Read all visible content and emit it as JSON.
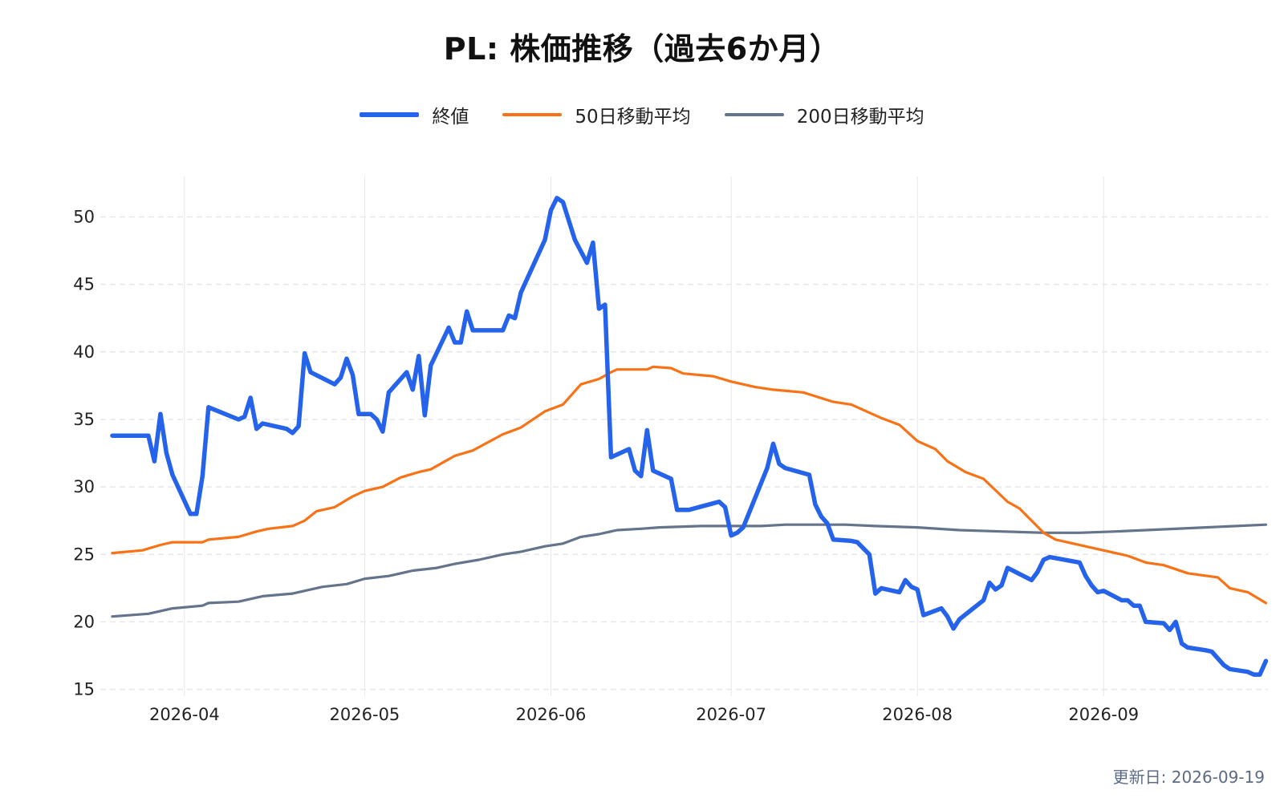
{
  "title": "PL: 株価推移（過去6か月）",
  "updated_label": "更新日: 2026-09-19",
  "colors": {
    "close": "#2563eb",
    "ma50": "#f97316",
    "ma200": "#64748b",
    "grid": "#e5e7eb"
  },
  "chart_data": {
    "type": "line",
    "title": "PL: 株価推移（過去6か月）",
    "xlabel": "",
    "ylabel": "",
    "xlim": [
      "2026-03-20",
      "2026-09-19"
    ],
    "ylim": [
      14.5,
      53
    ],
    "x_ticks": [
      "2026-04",
      "2026-05",
      "2026-06",
      "2026-07",
      "2026-08",
      "2026-09"
    ],
    "y_ticks": [
      15,
      20,
      25,
      30,
      35,
      40,
      45,
      50
    ],
    "grid": true,
    "legend": "top-center",
    "series": [
      {
        "name": "終値",
        "points": [
          [
            "2026-03-20",
            33.8
          ],
          [
            "2026-03-26",
            33.8
          ],
          [
            "2026-03-27",
            31.9
          ],
          [
            "2026-03-28",
            35.4
          ],
          [
            "2026-03-29",
            32.5
          ],
          [
            "2026-03-30",
            30.9
          ],
          [
            "2026-04-02",
            28.0
          ],
          [
            "2026-04-03",
            28.0
          ],
          [
            "2026-04-04",
            30.8
          ],
          [
            "2026-04-05",
            35.9
          ],
          [
            "2026-04-10",
            35.0
          ],
          [
            "2026-04-11",
            35.2
          ],
          [
            "2026-04-12",
            36.6
          ],
          [
            "2026-04-13",
            34.3
          ],
          [
            "2026-04-14",
            34.7
          ],
          [
            "2026-04-18",
            34.3
          ],
          [
            "2026-04-19",
            34.0
          ],
          [
            "2026-04-20",
            34.5
          ],
          [
            "2026-04-21",
            39.9
          ],
          [
            "2026-04-22",
            38.5
          ],
          [
            "2026-04-26",
            37.6
          ],
          [
            "2026-04-27",
            38.1
          ],
          [
            "2026-04-28",
            39.5
          ],
          [
            "2026-04-29",
            38.3
          ],
          [
            "2026-04-30",
            35.4
          ],
          [
            "2026-05-02",
            35.4
          ],
          [
            "2026-05-03",
            35.0
          ],
          [
            "2026-05-04",
            34.1
          ],
          [
            "2026-05-05",
            37.0
          ],
          [
            "2026-05-08",
            38.5
          ],
          [
            "2026-05-09",
            37.2
          ],
          [
            "2026-05-10",
            39.7
          ],
          [
            "2026-05-11",
            35.3
          ],
          [
            "2026-05-12",
            39.0
          ],
          [
            "2026-05-15",
            41.8
          ],
          [
            "2026-05-16",
            40.7
          ],
          [
            "2026-05-17",
            40.7
          ],
          [
            "2026-05-18",
            43.0
          ],
          [
            "2026-05-19",
            41.6
          ],
          [
            "2026-05-24",
            41.6
          ],
          [
            "2026-05-25",
            42.7
          ],
          [
            "2026-05-26",
            42.5
          ],
          [
            "2026-05-27",
            44.4
          ],
          [
            "2026-05-31",
            48.3
          ],
          [
            "2026-06-01",
            50.5
          ],
          [
            "2026-06-02",
            51.4
          ],
          [
            "2026-06-03",
            51.1
          ],
          [
            "2026-06-05",
            48.3
          ],
          [
            "2026-06-07",
            46.6
          ],
          [
            "2026-06-08",
            48.1
          ],
          [
            "2026-06-09",
            43.2
          ],
          [
            "2026-06-10",
            43.5
          ],
          [
            "2026-06-11",
            32.2
          ],
          [
            "2026-06-14",
            32.8
          ],
          [
            "2026-06-15",
            31.2
          ],
          [
            "2026-06-16",
            30.8
          ],
          [
            "2026-06-17",
            34.2
          ],
          [
            "2026-06-18",
            31.2
          ],
          [
            "2026-06-21",
            30.6
          ],
          [
            "2026-06-22",
            28.3
          ],
          [
            "2026-06-24",
            28.3
          ],
          [
            "2026-06-29",
            28.9
          ],
          [
            "2026-06-30",
            28.5
          ],
          [
            "2026-07-01",
            26.4
          ],
          [
            "2026-07-02",
            26.6
          ],
          [
            "2026-07-03",
            27.0
          ],
          [
            "2026-07-07",
            31.4
          ],
          [
            "2026-07-08",
            33.2
          ],
          [
            "2026-07-09",
            31.7
          ],
          [
            "2026-07-10",
            31.4
          ],
          [
            "2026-07-14",
            30.9
          ],
          [
            "2026-07-15",
            28.7
          ],
          [
            "2026-07-16",
            27.8
          ],
          [
            "2026-07-17",
            27.3
          ],
          [
            "2026-07-18",
            26.1
          ],
          [
            "2026-07-21",
            26.0
          ],
          [
            "2026-07-22",
            25.9
          ],
          [
            "2026-07-24",
            25.0
          ],
          [
            "2026-07-25",
            22.1
          ],
          [
            "2026-07-26",
            22.5
          ],
          [
            "2026-07-29",
            22.2
          ],
          [
            "2026-07-30",
            23.1
          ],
          [
            "2026-07-31",
            22.6
          ],
          [
            "2026-08-01",
            22.4
          ],
          [
            "2026-08-02",
            20.5
          ],
          [
            "2026-08-05",
            21.0
          ],
          [
            "2026-08-06",
            20.4
          ],
          [
            "2026-08-07",
            19.5
          ],
          [
            "2026-08-08",
            20.2
          ],
          [
            "2026-08-12",
            21.6
          ],
          [
            "2026-08-13",
            22.9
          ],
          [
            "2026-08-14",
            22.4
          ],
          [
            "2026-08-15",
            22.7
          ],
          [
            "2026-08-16",
            24.0
          ],
          [
            "2026-08-20",
            23.1
          ],
          [
            "2026-08-21",
            23.7
          ],
          [
            "2026-08-22",
            24.6
          ],
          [
            "2026-08-23",
            24.8
          ],
          [
            "2026-08-28",
            24.4
          ],
          [
            "2026-08-29",
            23.4
          ],
          [
            "2026-08-30",
            22.7
          ],
          [
            "2026-08-31",
            22.2
          ],
          [
            "2026-09-01",
            22.3
          ],
          [
            "2026-09-04",
            21.6
          ],
          [
            "2026-09-05",
            21.6
          ],
          [
            "2026-09-06",
            21.2
          ],
          [
            "2026-09-07",
            21.2
          ],
          [
            "2026-09-08",
            20.0
          ],
          [
            "2026-09-11",
            19.9
          ],
          [
            "2026-09-12",
            19.4
          ],
          [
            "2026-09-13",
            20.0
          ],
          [
            "2026-09-14",
            18.4
          ],
          [
            "2026-09-15",
            18.1
          ],
          [
            "2026-09-18",
            17.9
          ],
          [
            "2026-09-19",
            17.8
          ],
          [
            "2026-09-21",
            16.8
          ],
          [
            "2026-09-22",
            16.5
          ],
          [
            "2026-09-25",
            16.3
          ],
          [
            "2026-09-26",
            16.1
          ],
          [
            "2026-09-27",
            16.1
          ],
          [
            "2026-09-28",
            17.1
          ]
        ]
      },
      {
        "name": "50日移動平均",
        "points": [
          [
            "2026-03-20",
            25.1
          ],
          [
            "2026-03-25",
            25.3
          ],
          [
            "2026-03-28",
            25.7
          ],
          [
            "2026-03-30",
            25.9
          ],
          [
            "2026-04-04",
            25.9
          ],
          [
            "2026-04-05",
            26.1
          ],
          [
            "2026-04-10",
            26.3
          ],
          [
            "2026-04-13",
            26.7
          ],
          [
            "2026-04-15",
            26.9
          ],
          [
            "2026-04-19",
            27.1
          ],
          [
            "2026-04-21",
            27.5
          ],
          [
            "2026-04-23",
            28.2
          ],
          [
            "2026-04-26",
            28.5
          ],
          [
            "2026-04-29",
            29.3
          ],
          [
            "2026-05-01",
            29.7
          ],
          [
            "2026-05-04",
            30.0
          ],
          [
            "2026-05-07",
            30.7
          ],
          [
            "2026-05-10",
            31.1
          ],
          [
            "2026-05-12",
            31.3
          ],
          [
            "2026-05-14",
            31.8
          ],
          [
            "2026-05-16",
            32.3
          ],
          [
            "2026-05-19",
            32.7
          ],
          [
            "2026-05-24",
            33.9
          ],
          [
            "2026-05-27",
            34.4
          ],
          [
            "2026-05-31",
            35.6
          ],
          [
            "2026-06-03",
            36.1
          ],
          [
            "2026-06-06",
            37.6
          ],
          [
            "2026-06-09",
            38.0
          ],
          [
            "2026-06-11",
            38.5
          ],
          [
            "2026-06-12",
            38.7
          ],
          [
            "2026-06-17",
            38.7
          ],
          [
            "2026-06-18",
            38.9
          ],
          [
            "2026-06-21",
            38.8
          ],
          [
            "2026-06-23",
            38.4
          ],
          [
            "2026-06-28",
            38.2
          ],
          [
            "2026-07-01",
            37.8
          ],
          [
            "2026-07-05",
            37.4
          ],
          [
            "2026-07-08",
            37.2
          ],
          [
            "2026-07-13",
            37.0
          ],
          [
            "2026-07-18",
            36.3
          ],
          [
            "2026-07-21",
            36.1
          ],
          [
            "2026-07-23",
            35.7
          ],
          [
            "2026-07-26",
            35.1
          ],
          [
            "2026-07-29",
            34.6
          ],
          [
            "2026-08-01",
            33.4
          ],
          [
            "2026-08-04",
            32.8
          ],
          [
            "2026-08-06",
            31.9
          ],
          [
            "2026-08-09",
            31.1
          ],
          [
            "2026-08-12",
            30.6
          ],
          [
            "2026-08-16",
            28.9
          ],
          [
            "2026-08-18",
            28.4
          ],
          [
            "2026-08-22",
            26.6
          ],
          [
            "2026-08-24",
            26.1
          ],
          [
            "2026-08-30",
            25.5
          ],
          [
            "2026-09-02",
            25.2
          ],
          [
            "2026-09-05",
            24.9
          ],
          [
            "2026-09-08",
            24.4
          ],
          [
            "2026-09-11",
            24.2
          ],
          [
            "2026-09-15",
            23.6
          ],
          [
            "2026-09-20",
            23.3
          ],
          [
            "2026-09-22",
            22.5
          ],
          [
            "2026-09-25",
            22.2
          ],
          [
            "2026-09-28",
            21.4
          ]
        ]
      },
      {
        "name": "200日移動平均",
        "points": [
          [
            "2026-03-20",
            20.4
          ],
          [
            "2026-03-26",
            20.6
          ],
          [
            "2026-03-30",
            21.0
          ],
          [
            "2026-04-04",
            21.2
          ],
          [
            "2026-04-05",
            21.4
          ],
          [
            "2026-04-10",
            21.5
          ],
          [
            "2026-04-14",
            21.9
          ],
          [
            "2026-04-19",
            22.1
          ],
          [
            "2026-04-24",
            22.6
          ],
          [
            "2026-04-28",
            22.8
          ],
          [
            "2026-05-01",
            23.2
          ],
          [
            "2026-05-05",
            23.4
          ],
          [
            "2026-05-09",
            23.8
          ],
          [
            "2026-05-13",
            24.0
          ],
          [
            "2026-05-16",
            24.3
          ],
          [
            "2026-05-20",
            24.6
          ],
          [
            "2026-05-24",
            25.0
          ],
          [
            "2026-05-27",
            25.2
          ],
          [
            "2026-05-31",
            25.6
          ],
          [
            "2026-06-03",
            25.8
          ],
          [
            "2026-06-06",
            26.3
          ],
          [
            "2026-06-09",
            26.5
          ],
          [
            "2026-06-12",
            26.8
          ],
          [
            "2026-06-16",
            26.9
          ],
          [
            "2026-06-19",
            27.0
          ],
          [
            "2026-06-26",
            27.1
          ],
          [
            "2026-07-06",
            27.1
          ],
          [
            "2026-07-10",
            27.2
          ],
          [
            "2026-07-20",
            27.2
          ],
          [
            "2026-07-25",
            27.1
          ],
          [
            "2026-08-01",
            27.0
          ],
          [
            "2026-08-08",
            26.8
          ],
          [
            "2026-08-15",
            26.7
          ],
          [
            "2026-08-22",
            26.6
          ],
          [
            "2026-08-28",
            26.6
          ],
          [
            "2026-09-03",
            26.7
          ],
          [
            "2026-09-08",
            26.8
          ],
          [
            "2026-09-18",
            27.0
          ],
          [
            "2026-09-28",
            27.2
          ]
        ]
      }
    ]
  }
}
